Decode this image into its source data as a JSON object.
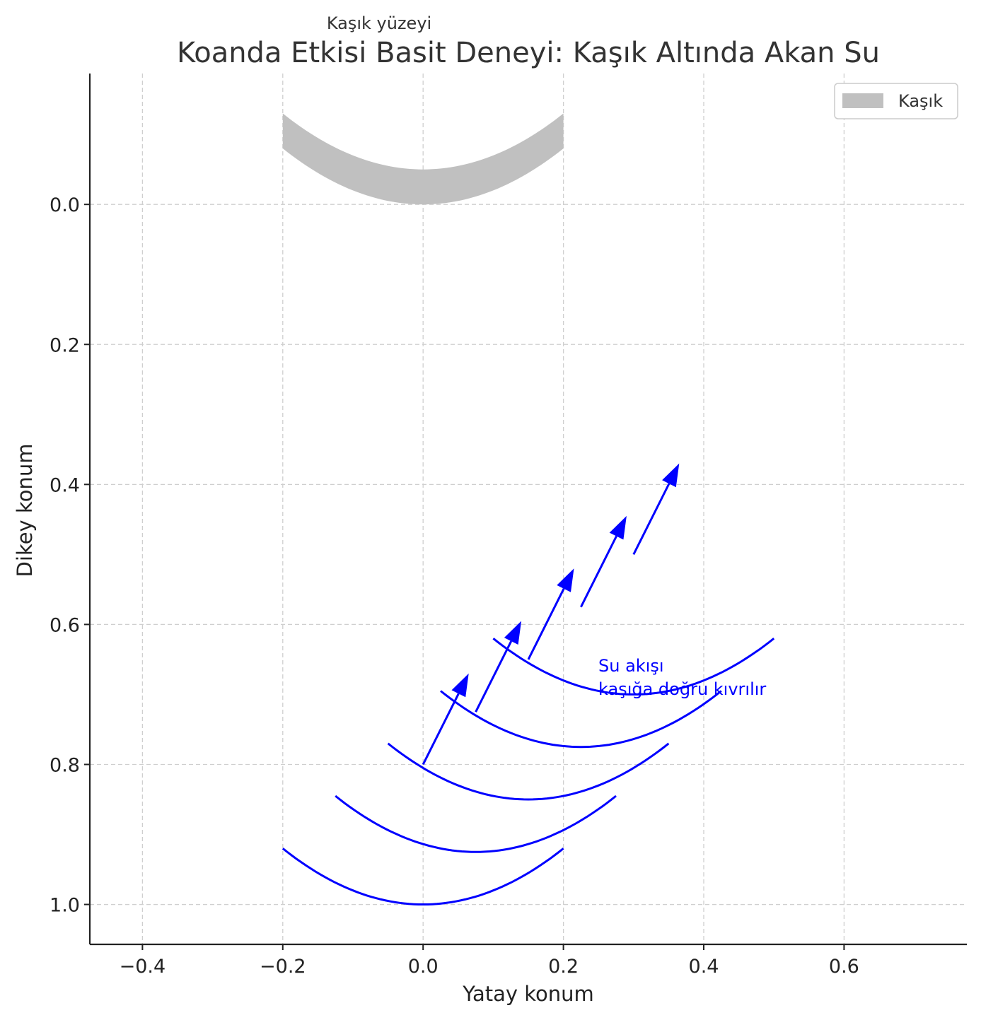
{
  "chart_data": {
    "type": "line",
    "title": "Koanda Etkisi Basit Deneyi: Kaşık Altında Akan Su",
    "xlabel": "Yatay konum",
    "ylabel": "Dikey konum",
    "xlim": [
      -0.475,
      0.775
    ],
    "ylim": [
      1.057,
      -0.187
    ],
    "y_inverted": true,
    "grid": true,
    "x_ticks": [
      -0.4,
      -0.2,
      0.0,
      0.2,
      0.4,
      0.6
    ],
    "x_tick_labels": [
      "−0.4",
      "−0.2",
      "0.0",
      "0.2",
      "0.4",
      "0.6"
    ],
    "y_ticks": [
      0.0,
      0.2,
      0.4,
      0.6,
      0.8,
      1.0
    ],
    "y_tick_labels": [
      "0.0",
      "0.2",
      "0.4",
      "0.6",
      "0.8",
      "1.0"
    ],
    "spoon": {
      "label": "Kaşık",
      "color": "#c0c0c0",
      "x_range": [
        -0.2,
        0.2
      ],
      "top_edge": {
        "y_center": -0.05,
        "y_edges": -0.13
      },
      "bottom_edge": {
        "y_center": 0.0,
        "y_edges": -0.08
      }
    },
    "flow_curves": [
      {
        "x_start": -0.2,
        "x_end": 0.2,
        "vertex_x": 0.0,
        "vertex_y": 1.0,
        "end_y": 0.92
      },
      {
        "x_start": -0.125,
        "x_end": 0.275,
        "vertex_x": 0.075,
        "vertex_y": 0.925,
        "end_y": 0.845
      },
      {
        "x_start": -0.05,
        "x_end": 0.35,
        "vertex_x": 0.15,
        "vertex_y": 0.85,
        "end_y": 0.77
      },
      {
        "x_start": 0.025,
        "x_end": 0.425,
        "vertex_x": 0.225,
        "vertex_y": 0.775,
        "end_y": 0.695
      },
      {
        "x_start": 0.1,
        "x_end": 0.5,
        "vertex_x": 0.3,
        "vertex_y": 0.7,
        "end_y": 0.62
      }
    ],
    "flow_color": "#0000ff",
    "arrows": [
      {
        "x": 0.0,
        "y": 0.8,
        "x2": 0.065,
        "y2": 0.67
      },
      {
        "x": 0.075,
        "y": 0.725,
        "x2": 0.14,
        "y2": 0.595
      },
      {
        "x": 0.15,
        "y": 0.65,
        "x2": 0.215,
        "y2": 0.52
      },
      {
        "x": 0.225,
        "y": 0.575,
        "x2": 0.29,
        "y2": 0.445
      },
      {
        "x": 0.3,
        "y": 0.5,
        "x2": 0.365,
        "y2": 0.37
      }
    ],
    "annotations": [
      {
        "text": "Kaşık yüzeyi",
        "x": -0.065,
        "y": -0.255
      },
      {
        "text": "Su akışı",
        "x": 0.25,
        "y": 0.66
      },
      {
        "text": "kaşığa doğru kıvrılır",
        "x": 0.25,
        "y": 0.693
      }
    ],
    "legend": {
      "position": "top-right",
      "entries": [
        "Kaşık"
      ]
    }
  }
}
